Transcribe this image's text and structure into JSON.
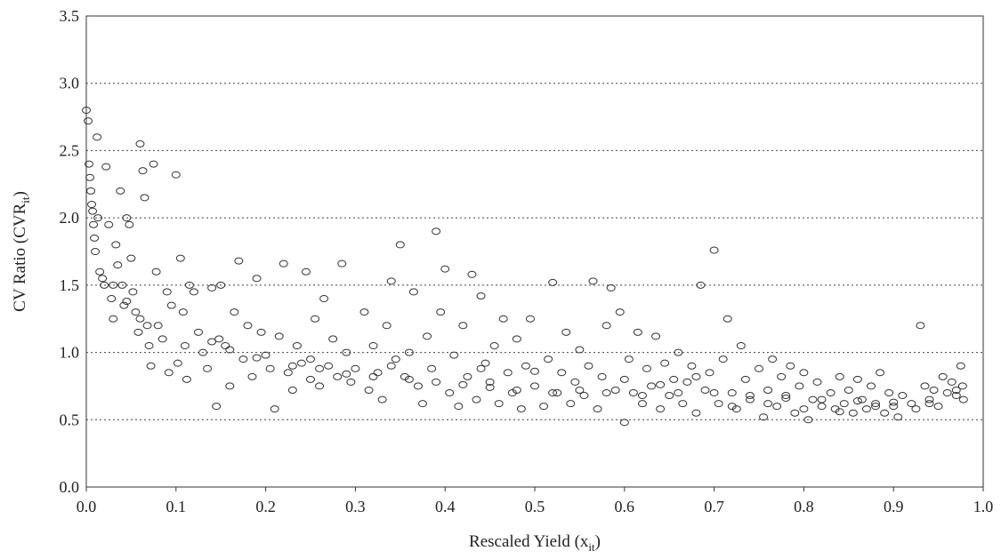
{
  "chart_data": {
    "type": "scatter",
    "xlabel": {
      "main": "Rescaled Yield (x",
      "sub": "it",
      "close": ")"
    },
    "ylabel": {
      "main": "CV Ratio (CVR",
      "sub": "it",
      "close": ")"
    },
    "xlim": [
      0.0,
      1.0
    ],
    "ylim": [
      0.0,
      3.5
    ],
    "x_ticks": [
      "0.0",
      "0.1",
      "0.2",
      "0.3",
      "0.4",
      "0.5",
      "0.6",
      "0.7",
      "0.8",
      "0.9",
      "1.0"
    ],
    "y_ticks": [
      "0.0",
      "0.5",
      "1.0",
      "1.5",
      "2.0",
      "2.5",
      "3.0",
      "3.5"
    ],
    "grid": "horizontal dotted",
    "legend": "none",
    "marker": "open circle",
    "points": [
      [
        0.0,
        2.8
      ],
      [
        0.002,
        2.72
      ],
      [
        0.003,
        2.4
      ],
      [
        0.004,
        2.3
      ],
      [
        0.005,
        2.2
      ],
      [
        0.006,
        2.1
      ],
      [
        0.007,
        2.05
      ],
      [
        0.008,
        1.95
      ],
      [
        0.009,
        1.85
      ],
      [
        0.01,
        1.75
      ],
      [
        0.012,
        2.6
      ],
      [
        0.013,
        2.0
      ],
      [
        0.015,
        1.6
      ],
      [
        0.018,
        1.55
      ],
      [
        0.02,
        1.5
      ],
      [
        0.022,
        2.38
      ],
      [
        0.025,
        1.95
      ],
      [
        0.028,
        1.4
      ],
      [
        0.03,
        1.25
      ],
      [
        0.033,
        1.8
      ],
      [
        0.035,
        1.65
      ],
      [
        0.038,
        2.2
      ],
      [
        0.04,
        1.5
      ],
      [
        0.042,
        1.35
      ],
      [
        0.045,
        2.0
      ],
      [
        0.048,
        1.95
      ],
      [
        0.05,
        1.7
      ],
      [
        0.052,
        1.45
      ],
      [
        0.055,
        1.3
      ],
      [
        0.058,
        1.15
      ],
      [
        0.06,
        2.55
      ],
      [
        0.063,
        2.35
      ],
      [
        0.065,
        2.15
      ],
      [
        0.068,
        1.2
      ],
      [
        0.07,
        1.05
      ],
      [
        0.072,
        0.9
      ],
      [
        0.075,
        2.4
      ],
      [
        0.078,
        1.6
      ],
      [
        0.08,
        1.2
      ],
      [
        0.085,
        1.1
      ],
      [
        0.09,
        1.45
      ],
      [
        0.092,
        0.85
      ],
      [
        0.095,
        1.35
      ],
      [
        0.1,
        2.32
      ],
      [
        0.102,
        0.92
      ],
      [
        0.105,
        1.7
      ],
      [
        0.108,
        1.3
      ],
      [
        0.11,
        1.05
      ],
      [
        0.112,
        0.8
      ],
      [
        0.115,
        1.5
      ],
      [
        0.12,
        1.45
      ],
      [
        0.125,
        1.15
      ],
      [
        0.13,
        1.0
      ],
      [
        0.135,
        0.88
      ],
      [
        0.14,
        1.48
      ],
      [
        0.145,
        0.6
      ],
      [
        0.148,
        1.1
      ],
      [
        0.15,
        1.5
      ],
      [
        0.155,
        1.05
      ],
      [
        0.16,
        0.75
      ],
      [
        0.165,
        1.3
      ],
      [
        0.17,
        1.68
      ],
      [
        0.175,
        0.95
      ],
      [
        0.18,
        1.2
      ],
      [
        0.185,
        0.82
      ],
      [
        0.19,
        1.55
      ],
      [
        0.195,
        1.15
      ],
      [
        0.2,
        0.98
      ],
      [
        0.205,
        0.88
      ],
      [
        0.21,
        0.58
      ],
      [
        0.215,
        1.12
      ],
      [
        0.22,
        1.66
      ],
      [
        0.225,
        0.85
      ],
      [
        0.23,
        0.72
      ],
      [
        0.235,
        1.05
      ],
      [
        0.24,
        0.92
      ],
      [
        0.245,
        1.6
      ],
      [
        0.25,
        0.8
      ],
      [
        0.255,
        1.25
      ],
      [
        0.26,
        0.75
      ],
      [
        0.265,
        1.4
      ],
      [
        0.27,
        0.9
      ],
      [
        0.275,
        1.1
      ],
      [
        0.28,
        0.82
      ],
      [
        0.285,
        1.66
      ],
      [
        0.29,
        1.0
      ],
      [
        0.295,
        0.78
      ],
      [
        0.3,
        0.88
      ],
      [
        0.31,
        1.3
      ],
      [
        0.315,
        0.72
      ],
      [
        0.32,
        1.05
      ],
      [
        0.325,
        0.85
      ],
      [
        0.33,
        0.65
      ],
      [
        0.335,
        1.2
      ],
      [
        0.34,
        1.53
      ],
      [
        0.345,
        0.95
      ],
      [
        0.35,
        1.8
      ],
      [
        0.355,
        0.82
      ],
      [
        0.36,
        1.0
      ],
      [
        0.365,
        1.45
      ],
      [
        0.37,
        0.75
      ],
      [
        0.375,
        0.62
      ],
      [
        0.38,
        1.12
      ],
      [
        0.385,
        0.88
      ],
      [
        0.39,
        1.9
      ],
      [
        0.395,
        1.3
      ],
      [
        0.4,
        1.62
      ],
      [
        0.405,
        0.7
      ],
      [
        0.41,
        0.98
      ],
      [
        0.415,
        0.6
      ],
      [
        0.42,
        1.2
      ],
      [
        0.425,
        0.82
      ],
      [
        0.43,
        1.58
      ],
      [
        0.435,
        0.65
      ],
      [
        0.44,
        1.42
      ],
      [
        0.445,
        0.92
      ],
      [
        0.45,
        0.78
      ],
      [
        0.455,
        1.05
      ],
      [
        0.46,
        0.62
      ],
      [
        0.465,
        1.25
      ],
      [
        0.47,
        0.85
      ],
      [
        0.475,
        0.7
      ],
      [
        0.48,
        1.1
      ],
      [
        0.485,
        0.58
      ],
      [
        0.49,
        0.9
      ],
      [
        0.495,
        1.25
      ],
      [
        0.5,
        0.75
      ],
      [
        0.51,
        0.6
      ],
      [
        0.515,
        0.95
      ],
      [
        0.52,
        1.52
      ],
      [
        0.525,
        0.7
      ],
      [
        0.53,
        0.85
      ],
      [
        0.535,
        1.15
      ],
      [
        0.54,
        0.62
      ],
      [
        0.545,
        0.78
      ],
      [
        0.55,
        1.02
      ],
      [
        0.555,
        0.68
      ],
      [
        0.56,
        0.9
      ],
      [
        0.565,
        1.53
      ],
      [
        0.57,
        0.58
      ],
      [
        0.575,
        0.82
      ],
      [
        0.58,
        1.2
      ],
      [
        0.585,
        1.48
      ],
      [
        0.59,
        0.72
      ],
      [
        0.595,
        1.3
      ],
      [
        0.6,
        0.48
      ],
      [
        0.605,
        0.95
      ],
      [
        0.61,
        0.7
      ],
      [
        0.615,
        1.15
      ],
      [
        0.62,
        0.62
      ],
      [
        0.625,
        0.88
      ],
      [
        0.63,
        0.75
      ],
      [
        0.635,
        1.12
      ],
      [
        0.64,
        0.58
      ],
      [
        0.645,
        0.92
      ],
      [
        0.65,
        0.68
      ],
      [
        0.655,
        0.8
      ],
      [
        0.66,
        1.0
      ],
      [
        0.665,
        0.62
      ],
      [
        0.67,
        0.78
      ],
      [
        0.675,
        0.9
      ],
      [
        0.68,
        0.55
      ],
      [
        0.685,
        1.5
      ],
      [
        0.69,
        0.72
      ],
      [
        0.695,
        0.85
      ],
      [
        0.7,
        1.76
      ],
      [
        0.705,
        0.62
      ],
      [
        0.71,
        0.95
      ],
      [
        0.715,
        1.25
      ],
      [
        0.72,
        0.7
      ],
      [
        0.725,
        0.58
      ],
      [
        0.73,
        1.05
      ],
      [
        0.735,
        0.8
      ],
      [
        0.74,
        0.65
      ],
      [
        0.75,
        0.88
      ],
      [
        0.755,
        0.52
      ],
      [
        0.76,
        0.72
      ],
      [
        0.765,
        0.95
      ],
      [
        0.77,
        0.6
      ],
      [
        0.775,
        0.82
      ],
      [
        0.78,
        0.68
      ],
      [
        0.785,
        0.9
      ],
      [
        0.79,
        0.55
      ],
      [
        0.795,
        0.75
      ],
      [
        0.8,
        0.85
      ],
      [
        0.805,
        0.5
      ],
      [
        0.81,
        0.65
      ],
      [
        0.815,
        0.78
      ],
      [
        0.82,
        0.6
      ],
      [
        0.83,
        0.7
      ],
      [
        0.835,
        0.58
      ],
      [
        0.84,
        0.82
      ],
      [
        0.845,
        0.62
      ],
      [
        0.85,
        0.72
      ],
      [
        0.855,
        0.55
      ],
      [
        0.86,
        0.8
      ],
      [
        0.865,
        0.65
      ],
      [
        0.87,
        0.58
      ],
      [
        0.875,
        0.75
      ],
      [
        0.88,
        0.62
      ],
      [
        0.885,
        0.85
      ],
      [
        0.89,
        0.55
      ],
      [
        0.895,
        0.7
      ],
      [
        0.9,
        0.6
      ],
      [
        0.905,
        0.52
      ],
      [
        0.91,
        0.68
      ],
      [
        0.92,
        0.62
      ],
      [
        0.925,
        0.58
      ],
      [
        0.93,
        1.2
      ],
      [
        0.935,
        0.75
      ],
      [
        0.94,
        0.65
      ],
      [
        0.945,
        0.72
      ],
      [
        0.95,
        0.6
      ],
      [
        0.955,
        0.82
      ],
      [
        0.96,
        0.7
      ],
      [
        0.965,
        0.78
      ],
      [
        0.97,
        0.68
      ],
      [
        0.975,
        0.9
      ],
      [
        0.977,
        0.75
      ],
      [
        0.978,
        0.65
      ],
      [
        0.03,
        1.5
      ],
      [
        0.045,
        1.38
      ],
      [
        0.06,
        1.25
      ],
      [
        0.14,
        1.08
      ],
      [
        0.16,
        1.02
      ],
      [
        0.19,
        0.96
      ],
      [
        0.23,
        0.9
      ],
      [
        0.26,
        0.88
      ],
      [
        0.29,
        0.84
      ],
      [
        0.32,
        0.82
      ],
      [
        0.36,
        0.8
      ],
      [
        0.39,
        0.78
      ],
      [
        0.42,
        0.76
      ],
      [
        0.45,
        0.74
      ],
      [
        0.48,
        0.72
      ],
      [
        0.52,
        0.7
      ],
      [
        0.55,
        0.72
      ],
      [
        0.58,
        0.7
      ],
      [
        0.62,
        0.68
      ],
      [
        0.66,
        0.7
      ],
      [
        0.7,
        0.7
      ],
      [
        0.74,
        0.68
      ],
      [
        0.78,
        0.66
      ],
      [
        0.82,
        0.65
      ],
      [
        0.86,
        0.64
      ],
      [
        0.9,
        0.63
      ],
      [
        0.94,
        0.62
      ],
      [
        0.97,
        0.72
      ],
      [
        0.25,
        0.95
      ],
      [
        0.34,
        0.9
      ],
      [
        0.44,
        0.88
      ],
      [
        0.5,
        0.86
      ],
      [
        0.6,
        0.8
      ],
      [
        0.64,
        0.76
      ],
      [
        0.68,
        0.82
      ],
      [
        0.72,
        0.6
      ],
      [
        0.76,
        0.62
      ],
      [
        0.8,
        0.58
      ],
      [
        0.84,
        0.56
      ],
      [
        0.88,
        0.6
      ]
    ]
  }
}
